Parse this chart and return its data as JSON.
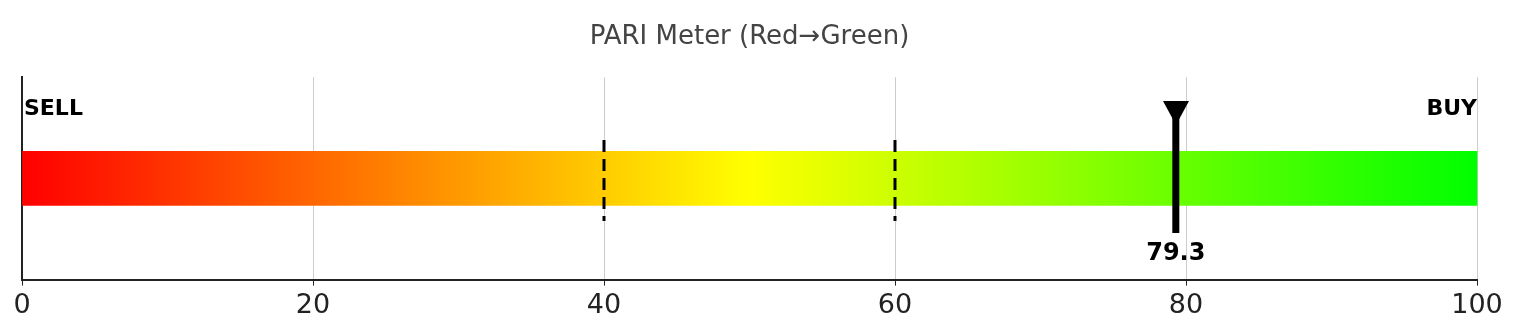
{
  "chart_data": {
    "type": "bar",
    "orientation": "horizontal",
    "title": "PARI Meter (Red→Green)",
    "categories": [
      null
    ],
    "values": [
      100
    ],
    "xlim": [
      0,
      100
    ],
    "xticks": [
      0,
      20,
      40,
      60,
      80,
      100
    ],
    "grid": "x",
    "ref_lines": [
      {
        "axis": "x",
        "value": 40,
        "line_style": "dashed",
        "color": "#000000"
      },
      {
        "axis": "x",
        "value": 60,
        "line_style": "dashed",
        "color": "#000000"
      },
      {
        "axis": "x",
        "value": 79.3,
        "label": "79.3",
        "color": "#000000"
      }
    ],
    "annotations": [
      "SELL",
      "BUY"
    ]
  }
}
